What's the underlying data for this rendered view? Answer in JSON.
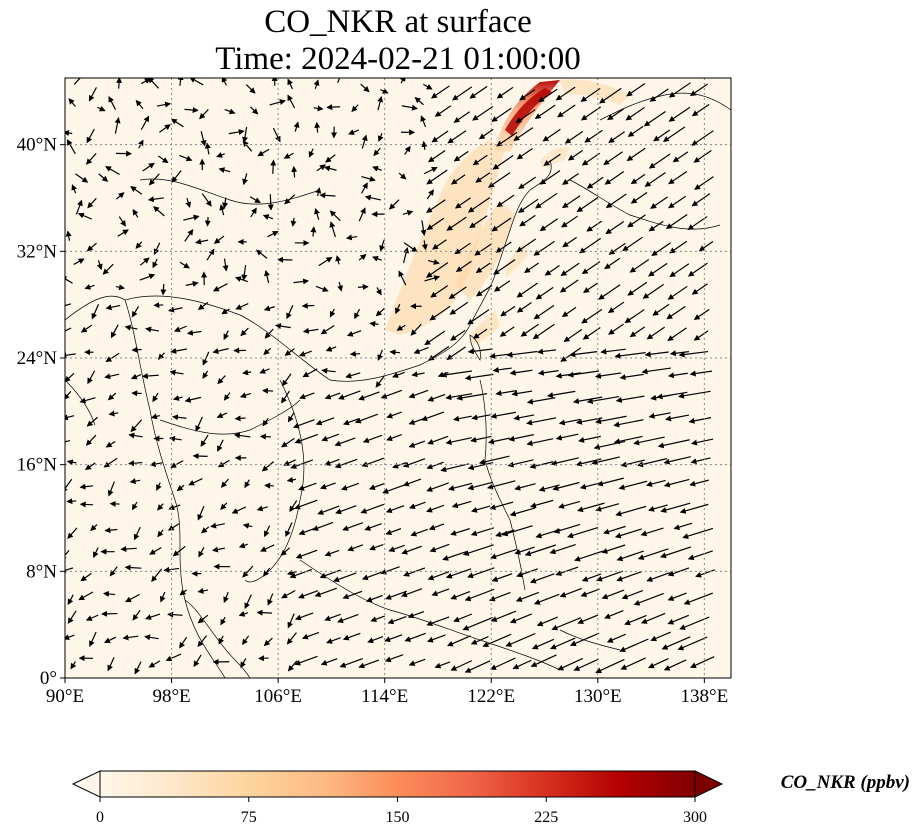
{
  "title_line1": "CO_NKR at surface",
  "title_line2": "Time: 2024-02-21 01:00:00",
  "map": {
    "lon_range": [
      90,
      140
    ],
    "lat_range": [
      0,
      45
    ],
    "lon_ticks": [
      {
        "value": 90,
        "label": "90°E"
      },
      {
        "value": 98,
        "label": "98°E"
      },
      {
        "value": 106,
        "label": "106°E"
      },
      {
        "value": 114,
        "label": "114°E"
      },
      {
        "value": 122,
        "label": "122°E"
      },
      {
        "value": 130,
        "label": "130°E"
      },
      {
        "value": 138,
        "label": "138°E"
      }
    ],
    "lat_ticks": [
      {
        "value": 0,
        "label": "0°"
      },
      {
        "value": 8,
        "label": "8°N"
      },
      {
        "value": 16,
        "label": "16°N"
      },
      {
        "value": 24,
        "label": "24°N"
      },
      {
        "value": 32,
        "label": "32°N"
      },
      {
        "value": 40,
        "label": "40°N"
      }
    ],
    "gridlines": true,
    "background_color": "#fff6ea",
    "coastline_color": "#000000",
    "wind_vector_color": "#000000"
  },
  "colorbar": {
    "title": "CO_NKR (ppbv)",
    "min": 0,
    "max": 300,
    "ticks": [
      {
        "value": 0,
        "label": "0"
      },
      {
        "value": 75,
        "label": "75"
      },
      {
        "value": 150,
        "label": "150"
      },
      {
        "value": 225,
        "label": "225"
      },
      {
        "value": 300,
        "label": "300"
      }
    ],
    "colormap": "OrRd",
    "extend": "both",
    "stops": [
      "#fff7ec",
      "#fee8c8",
      "#fdd49e",
      "#fdbb84",
      "#fc8d59",
      "#ef6548",
      "#d7301f",
      "#b30000",
      "#7f0000"
    ]
  }
}
